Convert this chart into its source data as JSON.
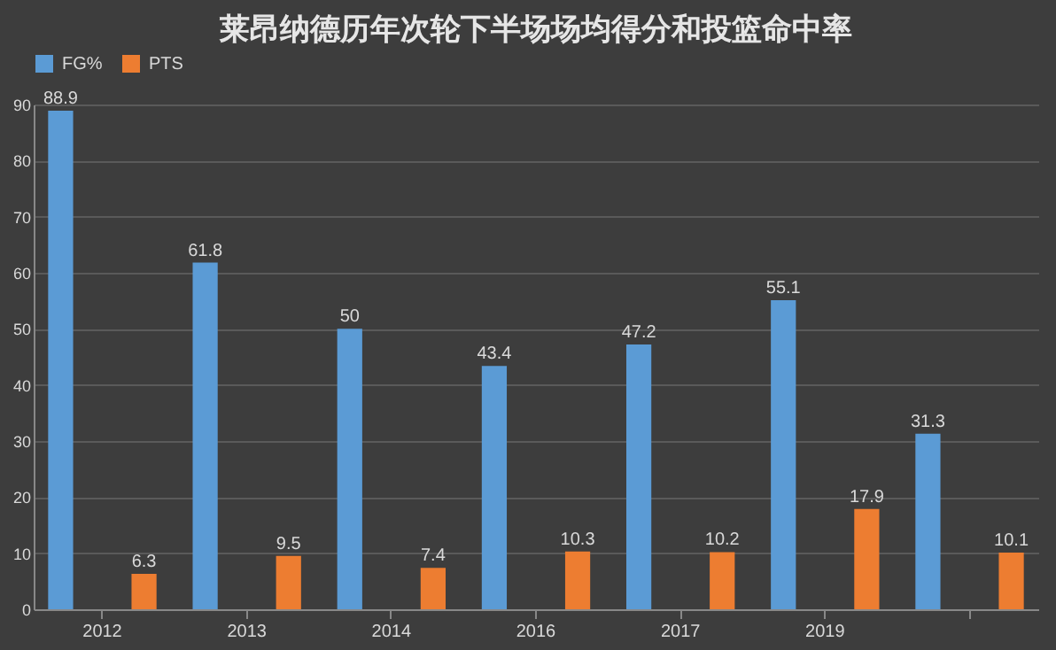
{
  "chart_data": {
    "type": "bar",
    "title": "莱昂纳德历年次轮下半场场均得分和投篮命中率",
    "categories": [
      "2012",
      "2013",
      "2014",
      "2016",
      "2017",
      "2019",
      null
    ],
    "series": [
      {
        "name": "FG%",
        "color": "#5b9bd5",
        "values": [
          88.9,
          61.8,
          50,
          43.4,
          47.2,
          55.1,
          31.3
        ]
      },
      {
        "name": "PTS",
        "color": "#ed7d31",
        "values": [
          6.3,
          9.5,
          7.4,
          10.3,
          10.2,
          17.9,
          10.1
        ]
      }
    ],
    "ylim": [
      0,
      90
    ],
    "yticks": [
      0,
      10,
      20,
      30,
      40,
      50,
      60,
      70,
      80,
      90
    ],
    "grid": "y",
    "legend": "top",
    "data_labels": true
  }
}
